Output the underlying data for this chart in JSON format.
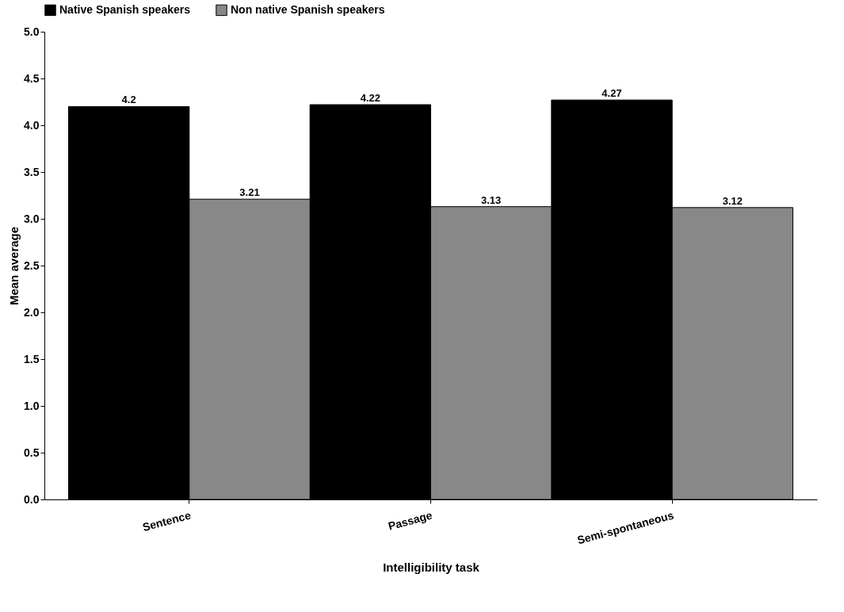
{
  "chart_data": {
    "type": "bar",
    "xlabel": "Intelligibility task",
    "ylabel": "Mean average",
    "categories": [
      "Sentence",
      "Passage",
      "Semi-spontaneous"
    ],
    "series": [
      {
        "name": "Native Spanish speakers",
        "color": "#000000",
        "values": [
          4.2,
          4.22,
          4.27
        ]
      },
      {
        "name": "Non native Spanish speakers",
        "color": "#888888",
        "values": [
          3.21,
          3.13,
          3.12
        ]
      }
    ],
    "ylim": [
      0,
      5
    ],
    "yticks": [
      {
        "value": 0,
        "label": "0.0"
      },
      {
        "value": 0.5,
        "label": "0.5"
      },
      {
        "value": 1,
        "label": "1.0"
      },
      {
        "value": 1.5,
        "label": "1.5"
      },
      {
        "value": 2,
        "label": "2.0"
      },
      {
        "value": 2.5,
        "label": "2.5"
      },
      {
        "value": 3,
        "label": "3.0"
      },
      {
        "value": 3.5,
        "label": "3.5"
      },
      {
        "value": 4,
        "label": "4.0"
      },
      {
        "value": 4.5,
        "label": "4.5"
      },
      {
        "value": 5,
        "label": "5.0"
      }
    ],
    "data_labels": true,
    "legend": "top left",
    "grid": false
  }
}
